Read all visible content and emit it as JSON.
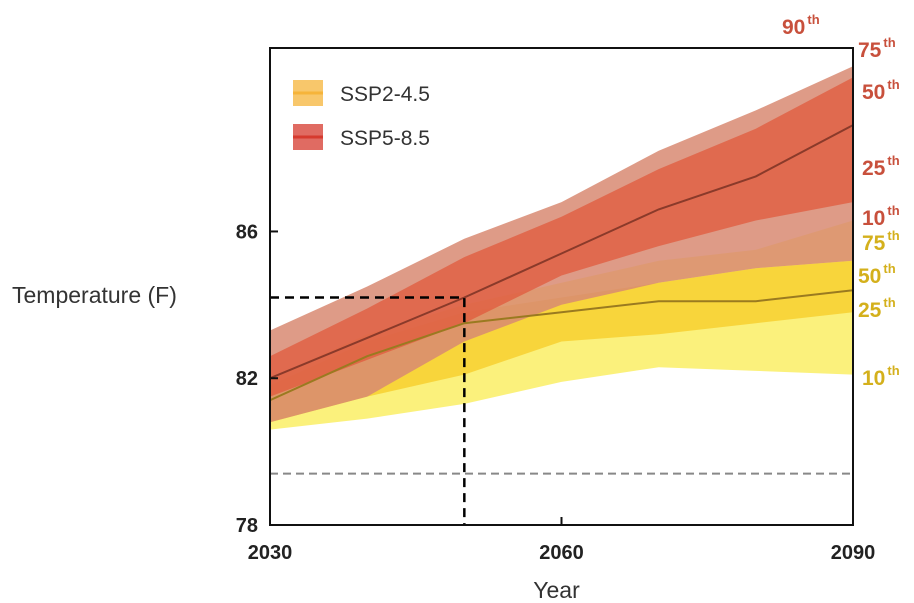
{
  "chart_data": {
    "type": "area",
    "xlabel": "Year",
    "ylabel": "Temperature (F)",
    "xlim": [
      2030,
      2090
    ],
    "ylim": [
      78,
      91
    ],
    "xticks": [
      2030,
      2060,
      2090
    ],
    "yticks": [
      78,
      82,
      86
    ],
    "grid": false,
    "legend_position": "top-left",
    "x": [
      2030,
      2040,
      2050,
      2060,
      2070,
      2080,
      2090
    ],
    "series": [
      {
        "name": "SSP2-4.5",
        "colors": {
          "outer": "#fbf075",
          "inner": "#f7d030",
          "line": "#9a7a20",
          "swatch": "#f6b43a"
        },
        "p10": [
          80.6,
          80.9,
          81.3,
          81.9,
          82.3,
          82.2,
          82.1
        ],
        "p25": [
          80.8,
          81.5,
          82.1,
          83.0,
          83.2,
          83.5,
          83.8
        ],
        "p50": [
          81.4,
          82.6,
          83.5,
          83.8,
          84.1,
          84.1,
          84.4
        ],
        "p75": [
          81.8,
          83.0,
          83.8,
          84.2,
          84.6,
          85.0,
          85.2
        ],
        "p90": [
          82.0,
          83.2,
          84.0,
          84.6,
          85.2,
          85.5,
          86.3
        ]
      },
      {
        "name": "SSP5-8.5",
        "colors": {
          "outer": "#d88a72",
          "inner": "#e0593c",
          "line": "#8a3a2a",
          "swatch": "#d63a2e"
        },
        "p10": [
          80.8,
          81.5,
          83.0,
          84.0,
          84.6,
          85.0,
          85.2
        ],
        "p25": [
          81.5,
          82.5,
          83.5,
          84.8,
          85.6,
          86.3,
          86.8
        ],
        "p50": [
          82.0,
          83.1,
          84.2,
          85.4,
          86.6,
          87.5,
          88.9
        ],
        "p75": [
          82.6,
          83.9,
          85.3,
          86.4,
          87.7,
          88.8,
          90.2
        ],
        "p90": [
          83.3,
          84.5,
          85.8,
          86.8,
          88.2,
          89.3,
          90.5
        ]
      }
    ],
    "reference_lines": [
      {
        "style": "dashed",
        "color": "#000000",
        "x": 2050,
        "y": 84.2
      },
      {
        "style": "dashed",
        "color": "#888888",
        "y": 79.4
      }
    ],
    "percentile_labels": [
      {
        "base": "90",
        "sup": "th",
        "color": "#c8503c"
      },
      {
        "base": "75",
        "sup": "th",
        "color": "#c8503c"
      },
      {
        "base": "50",
        "sup": "th",
        "color": "#c8503c"
      },
      {
        "base": "25",
        "sup": "th",
        "color": "#c8503c"
      },
      {
        "base": "10",
        "sup": "th",
        "color": "#c8503c"
      },
      {
        "base": "75",
        "sup": "th",
        "color": "#d4b01c"
      },
      {
        "base": "50",
        "sup": "th",
        "color": "#d4b01c"
      },
      {
        "base": "25",
        "sup": "th",
        "color": "#d4b01c"
      },
      {
        "base": "10",
        "sup": "th",
        "color": "#d4b01c"
      }
    ]
  }
}
